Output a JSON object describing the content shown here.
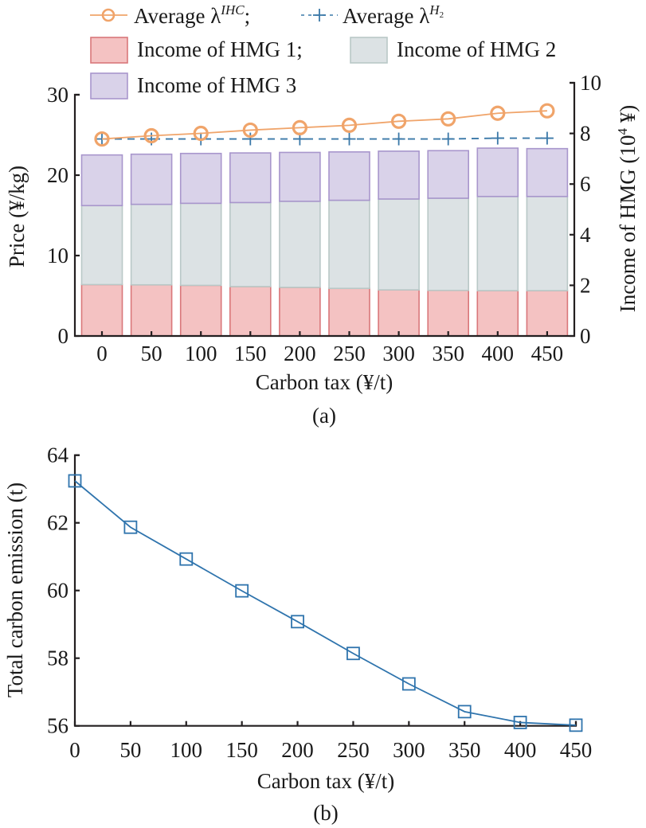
{
  "chart_data": [
    {
      "id": "a",
      "type": "bar",
      "subplot_label": "(a)",
      "stacked": true,
      "title": "",
      "xlabel": "Carbon tax (¥/t)",
      "ylabel": "Price (¥/kg)",
      "ylabel_right": "Income of HMG (10⁴ ¥)",
      "ylabel_right_parts": {
        "prefix": "Income of HMG (10",
        "sup": "4",
        "suffix": " ¥)"
      },
      "categories": [
        "0",
        "50",
        "100",
        "150",
        "200",
        "250",
        "300",
        "350",
        "400",
        "450"
      ],
      "ylim": [
        0,
        30
      ],
      "yticks": [
        "0",
        "10",
        "20",
        "30"
      ],
      "ylim_right": [
        0,
        10
      ],
      "yticks_right": [
        "0",
        "2",
        "4",
        "6",
        "8",
        "10"
      ],
      "grid": false,
      "legend_position": "top",
      "bar_series": [
        {
          "name": "Income of HMG 1",
          "axis": "right",
          "color": "#f4c2c2",
          "edge": "#d9777a",
          "values": [
            2.03,
            2.02,
            2.0,
            1.95,
            1.92,
            1.88,
            1.82,
            1.8,
            1.79,
            1.79
          ]
        },
        {
          "name": "Income of HMG 2",
          "axis": "right",
          "color": "#dce2e4",
          "edge": "#b9c8c7",
          "values": [
            3.12,
            3.18,
            3.24,
            3.32,
            3.4,
            3.48,
            3.59,
            3.64,
            3.72,
            3.72
          ]
        },
        {
          "name": "Income of HMG 3",
          "axis": "right",
          "color": "#d9d2e9",
          "edge": "#a896cc",
          "values": [
            2.0,
            1.98,
            1.97,
            1.96,
            1.93,
            1.91,
            1.89,
            1.88,
            1.91,
            1.89
          ]
        }
      ],
      "line_series": [
        {
          "name": "Average λ^IHC",
          "axis": "left",
          "marker": "circle",
          "style": "solid",
          "color": "#f0a46a",
          "values": [
            24.5,
            24.9,
            25.2,
            25.6,
            25.9,
            26.2,
            26.7,
            27.0,
            27.7,
            28.0
          ]
        },
        {
          "name": "Average λ^H2",
          "axis": "left",
          "marker": "plus",
          "style": "dashed",
          "color": "#3a78a8",
          "values": [
            24.5,
            24.5,
            24.5,
            24.5,
            24.5,
            24.5,
            24.5,
            24.5,
            24.6,
            24.6
          ]
        }
      ],
      "legend": [
        {
          "kind": "line-circle",
          "label": "Average λ",
          "sup": "IHC",
          "sep": ";"
        },
        {
          "kind": "line-plus",
          "label": "Average λ",
          "sup": "H",
          "sup_sub": "2",
          "sep": ""
        },
        {
          "kind": "box",
          "series": 0,
          "label": "Income of HMG 1",
          "sep": ";"
        },
        {
          "kind": "box",
          "series": 1,
          "label": "Income of HMG 2",
          "sep": ""
        },
        {
          "kind": "box",
          "series": 2,
          "label": "Income of HMG 3",
          "sep": ""
        }
      ]
    },
    {
      "id": "b",
      "type": "line",
      "subplot_label": "(b)",
      "title": "",
      "xlabel": "Carbon tax (¥/t)",
      "ylabel": "Total carbon emission (t)",
      "x": [
        0,
        50,
        100,
        150,
        200,
        250,
        300,
        350,
        400,
        450
      ],
      "xticks": [
        "0",
        "50",
        "100",
        "150",
        "200",
        "250",
        "300",
        "350",
        "400",
        "450"
      ],
      "xlim": [
        0,
        450
      ],
      "ylim": [
        56,
        64
      ],
      "yticks": [
        "56",
        "58",
        "60",
        "62",
        "64"
      ],
      "grid": false,
      "series": [
        {
          "name": "Total carbon emission",
          "marker": "square",
          "color": "#2f74ad",
          "values": [
            63.24,
            61.87,
            60.93,
            59.99,
            59.08,
            58.14,
            57.24,
            56.42,
            56.1,
            56.02
          ]
        }
      ]
    }
  ]
}
